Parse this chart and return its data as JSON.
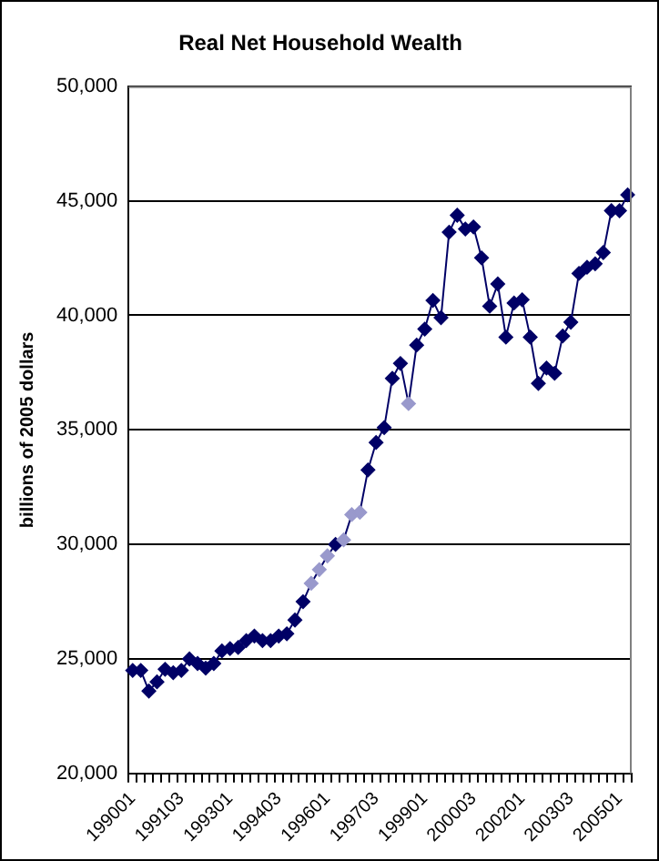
{
  "chart_data": {
    "type": "line",
    "title": "Real Net Household Wealth",
    "ylabel": "billions of 2005 dollars",
    "categories": [
      "199001",
      null,
      null,
      null,
      null,
      null,
      "199103",
      null,
      null,
      null,
      null,
      null,
      "199301",
      null,
      null,
      null,
      null,
      null,
      "199403",
      null,
      null,
      null,
      null,
      null,
      "199601",
      null,
      null,
      null,
      null,
      null,
      "199703",
      null,
      null,
      null,
      null,
      null,
      "199901",
      null,
      null,
      null,
      null,
      null,
      "200003",
      null,
      null,
      null,
      null,
      null,
      "200201",
      null,
      null,
      null,
      null,
      null,
      "200303",
      null,
      null,
      null,
      null,
      null,
      "200501",
      null
    ],
    "series": [
      {
        "color": "#000066",
        "values": [
          24500,
          24500,
          23600,
          24000,
          24550,
          24400,
          24500,
          25000,
          24800,
          24600,
          24800,
          25350,
          25450,
          25500,
          25800,
          26000,
          25800,
          25800,
          26000,
          26100,
          26700,
          27500,
          28300,
          28900,
          29500,
          30000,
          30200,
          31300,
          31400,
          33250,
          34450,
          35100,
          37250,
          37900,
          36150,
          38700,
          39400,
          40650,
          39900,
          43630,
          44370,
          43770,
          43860,
          42510,
          40400,
          41370,
          39050,
          40540,
          40680,
          39050,
          37030,
          37700,
          37470,
          39100,
          39700,
          41830,
          42100,
          42250,
          42740,
          44570,
          44570,
          45260
        ],
        "colors": [
          "#000066",
          "#000066",
          "#000066",
          "#000066",
          "#000066",
          "#000066",
          "#000066",
          "#000066",
          "#000066",
          "#000066",
          "#000066",
          "#000066",
          "#000066",
          "#000066",
          "#000066",
          "#000066",
          "#000066",
          "#000066",
          "#000066",
          "#000066",
          "#000066",
          "#000066",
          "#9999cc",
          "#9999cc",
          "#9999cc",
          "#000066",
          "#9999cc",
          "#9999cc",
          "#9999cc",
          "#000066",
          "#000066",
          "#000066",
          "#000066",
          "#000066",
          "#9999cc",
          "#000066",
          "#000066",
          "#000066",
          "#000066",
          "#000066",
          "#000066",
          "#000066",
          "#000066",
          "#000066",
          "#000066",
          "#000066",
          "#000066",
          "#000066",
          "#000066",
          "#000066",
          "#000066",
          "#000066",
          "#000066",
          "#000066",
          "#000066",
          "#000066",
          "#000066",
          "#000066",
          "#000066",
          "#000066",
          "#000066",
          "#000066"
        ]
      }
    ],
    "ylim": [
      20000,
      50000
    ],
    "yticks": [
      {
        "value": 20000,
        "label": "20,000"
      },
      {
        "value": 25000,
        "label": "25,000"
      },
      {
        "value": 30000,
        "label": "30,000"
      },
      {
        "value": 35000,
        "label": "35,000"
      },
      {
        "value": 40000,
        "label": "40,000"
      },
      {
        "value": 45000,
        "label": "45,000"
      },
      {
        "value": 50000,
        "label": "50,000"
      }
    ],
    "grid": "y",
    "legend": false,
    "marker": "diamond",
    "line_style": "solid"
  }
}
